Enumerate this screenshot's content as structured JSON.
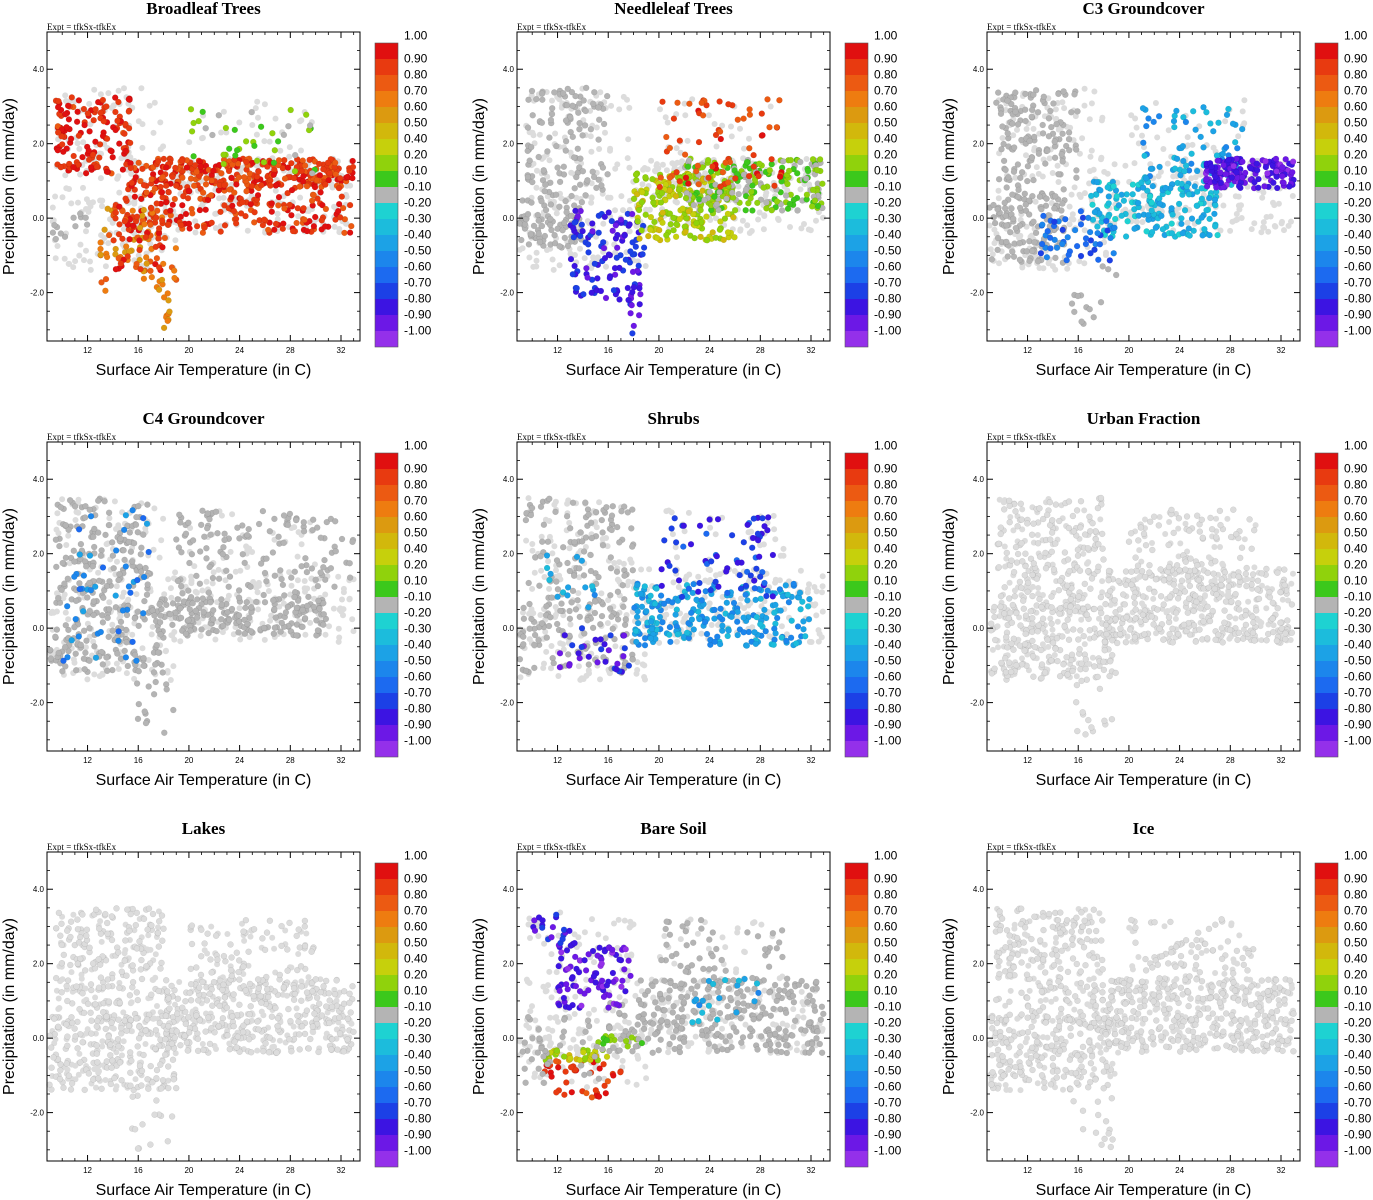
{
  "chart_data": [
    {
      "type": "scatter",
      "title": "Broadleaf Trees",
      "expt": "Expt = tfkSx-tfkEx",
      "xlabel": "Surface Air Temperature (in C)",
      "ylabel": "Precipitation (in mm/day)",
      "xlim": [
        8.8,
        33.5
      ],
      "ylim": [
        -3.3,
        5.0
      ],
      "xticks": [
        12,
        16,
        20,
        24,
        28,
        32
      ],
      "yticks": [
        -2.0,
        0.0,
        2.0,
        4.0
      ],
      "xtick_labels": [
        "12",
        "16",
        "20",
        "24",
        "28",
        "32"
      ],
      "ytick_labels": [
        "-2.0",
        "0.0",
        "2.0",
        "4.0"
      ],
      "clusters": [
        {
          "x": [
            9.5,
            15.5
          ],
          "y": [
            1.2,
            3.3
          ],
          "n": 140,
          "color_value": 0.95
        },
        {
          "x": [
            15,
            33
          ],
          "y": [
            -0.4,
            1.6
          ],
          "n": 320,
          "color_value": 0.9
        },
        {
          "x": [
            17,
            32
          ],
          "y": [
            0.8,
            1.6
          ],
          "n": 160,
          "color_value": 0.85
        },
        {
          "x": [
            20,
            30
          ],
          "y": [
            1.2,
            3.0
          ],
          "n": 40,
          "color_value": 0.15
        },
        {
          "x": [
            13,
            19
          ],
          "y": [
            -2.0,
            0.3
          ],
          "n": 70,
          "color_value": 0.65
        },
        {
          "x": [
            14,
            18
          ],
          "y": [
            -1.4,
            0.4
          ],
          "n": 50,
          "color_value": 0.92
        },
        {
          "x": [
            9,
            12
          ],
          "y": [
            -0.7,
            0.2
          ],
          "n": 12,
          "color_value": -0.05
        },
        {
          "x": [
            17.5,
            18.5
          ],
          "y": [
            -3.0,
            -1.5
          ],
          "n": 12,
          "color_value": 0.6
        }
      ]
    },
    {
      "type": "scatter",
      "title": "Needleleaf Trees",
      "expt": "Expt = tfkSx-tfkEx",
      "xlabel": "Surface Air Temperature (in C)",
      "ylabel": "Precipitation (in mm/day)",
      "xlim": [
        8.8,
        33.5
      ],
      "ylim": [
        -3.3,
        5.0
      ],
      "xticks": [
        12,
        16,
        20,
        24,
        28,
        32
      ],
      "yticks": [
        -2.0,
        0.0,
        2.0,
        4.0
      ],
      "xtick_labels": [
        "12",
        "16",
        "20",
        "24",
        "28",
        "32"
      ],
      "ytick_labels": [
        "-2.0",
        "0.0",
        "2.0",
        "4.0"
      ],
      "clusters": [
        {
          "x": [
            9.5,
            16
          ],
          "y": [
            0.6,
            3.5
          ],
          "n": 110,
          "color_value": -0.05
        },
        {
          "x": [
            9,
            14
          ],
          "y": [
            -0.8,
            0.6
          ],
          "n": 80,
          "color_value": -0.02
        },
        {
          "x": [
            13,
            19
          ],
          "y": [
            -2.2,
            0.2
          ],
          "n": 110,
          "color_value": -0.75
        },
        {
          "x": [
            17.5,
            18.5
          ],
          "y": [
            -3.1,
            -1.4
          ],
          "n": 14,
          "color_value": -0.8
        },
        {
          "x": [
            18,
            26
          ],
          "y": [
            -0.6,
            1.2
          ],
          "n": 200,
          "color_value": 0.3
        },
        {
          "x": [
            22,
            33
          ],
          "y": [
            0.2,
            1.6
          ],
          "n": 220,
          "color_value": 0.15
        },
        {
          "x": [
            20,
            30
          ],
          "y": [
            0.8,
            3.2
          ],
          "n": 70,
          "color_value": 0.85
        }
      ]
    },
    {
      "type": "scatter",
      "title": "C3 Groundcover",
      "expt": "Expt = tfkSx-tfkEx",
      "xlabel": "Surface Air Temperature (in C)",
      "ylabel": "Precipitation (in mm/day)",
      "xlim": [
        8.8,
        33.5
      ],
      "ylim": [
        -3.3,
        5.0
      ],
      "xticks": [
        12,
        16,
        20,
        24,
        28,
        32
      ],
      "yticks": [
        -2.0,
        0.0,
        2.0,
        4.0
      ],
      "xtick_labels": [
        "12",
        "16",
        "20",
        "24",
        "28",
        "32"
      ],
      "ytick_labels": [
        "-2.0",
        "0.0",
        "2.0",
        "4.0"
      ],
      "clusters": [
        {
          "x": [
            9.5,
            16
          ],
          "y": [
            0.6,
            3.5
          ],
          "n": 130,
          "color_value": -0.05
        },
        {
          "x": [
            9,
            15
          ],
          "y": [
            -1.2,
            0.6
          ],
          "n": 110,
          "color_value": -0.05
        },
        {
          "x": [
            15.5,
            19
          ],
          "y": [
            -3.0,
            -1.2
          ],
          "n": 14,
          "color_value": -0.02
        },
        {
          "x": [
            17,
            27
          ],
          "y": [
            -0.5,
            1.0
          ],
          "n": 160,
          "color_value": -0.25
        },
        {
          "x": [
            21,
            29
          ],
          "y": [
            0.8,
            3.0
          ],
          "n": 80,
          "color_value": -0.3
        },
        {
          "x": [
            26,
            33
          ],
          "y": [
            0.8,
            1.6
          ],
          "n": 150,
          "color_value": -0.85
        },
        {
          "x": [
            13,
            19
          ],
          "y": [
            -1.2,
            0.2
          ],
          "n": 50,
          "color_value": -0.55
        }
      ]
    },
    {
      "type": "scatter",
      "title": "C4 Groundcover",
      "expt": "Expt = tfkSx-tfkEx",
      "xlabel": "Surface Air Temperature (in C)",
      "ylabel": "Precipitation (in mm/day)",
      "xlim": [
        8.8,
        33.5
      ],
      "ylim": [
        -3.3,
        5.0
      ],
      "xticks": [
        12,
        16,
        20,
        24,
        28,
        32
      ],
      "yticks": [
        -2.0,
        0.0,
        2.0,
        4.0
      ],
      "xtick_labels": [
        "12",
        "16",
        "20",
        "24",
        "28",
        "32"
      ],
      "ytick_labels": [
        "-2.0",
        "0.0",
        "2.0",
        "4.0"
      ],
      "clusters": [
        {
          "x": [
            9.5,
            17
          ],
          "y": [
            0.6,
            3.5
          ],
          "n": 150,
          "color_value": -0.05
        },
        {
          "x": [
            9,
            18
          ],
          "y": [
            -1.2,
            0.6
          ],
          "n": 130,
          "color_value": -0.05
        },
        {
          "x": [
            17,
            31
          ],
          "y": [
            -0.2,
            0.8
          ],
          "n": 160,
          "color_value": -0.05
        },
        {
          "x": [
            19,
            33
          ],
          "y": [
            0.4,
            3.2
          ],
          "n": 160,
          "color_value": 0.0
        },
        {
          "x": [
            10,
            17
          ],
          "y": [
            -1.0,
            3.2
          ],
          "n": 45,
          "color_value": -0.45
        },
        {
          "x": [
            15.5,
            19
          ],
          "y": [
            -3.0,
            -1.4
          ],
          "n": 14,
          "color_value": 0.0
        }
      ]
    },
    {
      "type": "scatter",
      "title": "Shrubs",
      "expt": "Expt = tfkSx-tfkEx",
      "xlabel": "Surface Air Temperature (in C)",
      "ylabel": "Precipitation (in mm/day)",
      "xlim": [
        8.8,
        33.5
      ],
      "ylim": [
        -3.3,
        5.0
      ],
      "xticks": [
        12,
        16,
        20,
        24,
        28,
        32
      ],
      "yticks": [
        -2.0,
        0.0,
        2.0,
        4.0
      ],
      "xtick_labels": [
        "12",
        "16",
        "20",
        "24",
        "28",
        "32"
      ],
      "ytick_labels": [
        "-2.0",
        "0.0",
        "2.0",
        "4.0"
      ],
      "clusters": [
        {
          "x": [
            9.5,
            18
          ],
          "y": [
            0.6,
            3.5
          ],
          "n": 110,
          "color_value": 0.0
        },
        {
          "x": [
            9,
            18
          ],
          "y": [
            -1.2,
            0.6
          ],
          "n": 90,
          "color_value": -0.05
        },
        {
          "x": [
            18,
            32
          ],
          "y": [
            -0.5,
            1.2
          ],
          "n": 230,
          "color_value": -0.35
        },
        {
          "x": [
            20,
            29
          ],
          "y": [
            0.8,
            3.0
          ],
          "n": 70,
          "color_value": -0.7
        },
        {
          "x": [
            12,
            18
          ],
          "y": [
            -1.2,
            0.0
          ],
          "n": 30,
          "color_value": -0.75
        },
        {
          "x": [
            11,
            15
          ],
          "y": [
            0.4,
            2.0
          ],
          "n": 15,
          "color_value": -0.3
        }
      ]
    },
    {
      "type": "scatter",
      "title": "Urban Fraction",
      "expt": "Expt = tfkSx-tfkEx",
      "xlabel": "Surface Air Temperature (in C)",
      "ylabel": "Precipitation (in mm/day)",
      "xlim": [
        8.8,
        33.5
      ],
      "ylim": [
        -3.3,
        5.0
      ],
      "xticks": [
        12,
        16,
        20,
        24,
        28,
        32
      ],
      "yticks": [
        -2.0,
        0.0,
        2.0,
        4.0
      ],
      "xtick_labels": [
        "12",
        "16",
        "20",
        "24",
        "28",
        "32"
      ],
      "ytick_labels": [
        "-2.0",
        "0.0",
        "2.0",
        "4.0"
      ],
      "clusters": [
        {
          "x": [
            9.5,
            18
          ],
          "y": [
            0.4,
            3.5
          ],
          "n": 170,
          "color_value": 0.0
        },
        {
          "x": [
            9,
            19
          ],
          "y": [
            -1.4,
            0.6
          ],
          "n": 160,
          "color_value": 0.0
        },
        {
          "x": [
            18,
            33
          ],
          "y": [
            -0.4,
            1.6
          ],
          "n": 280,
          "color_value": 0.0
        },
        {
          "x": [
            20,
            30
          ],
          "y": [
            1.0,
            3.2
          ],
          "n": 80,
          "color_value": 0.0
        },
        {
          "x": [
            15.5,
            19
          ],
          "y": [
            -3.0,
            -1.4
          ],
          "n": 14,
          "color_value": 0.0
        }
      ]
    },
    {
      "type": "scatter",
      "title": "Lakes",
      "expt": "Expt = tfkSx-tfkEx",
      "xlabel": "Surface Air Temperature (in C)",
      "ylabel": "Precipitation (in mm/day)",
      "xlim": [
        8.8,
        33.5
      ],
      "ylim": [
        -3.3,
        5.0
      ],
      "xticks": [
        12,
        16,
        20,
        24,
        28,
        32
      ],
      "yticks": [
        -2.0,
        0.0,
        2.0,
        4.0
      ],
      "xtick_labels": [
        "12",
        "16",
        "20",
        "24",
        "28",
        "32"
      ],
      "ytick_labels": [
        "-2.0",
        "0.0",
        "2.0",
        "4.0"
      ],
      "clusters": [
        {
          "x": [
            9.5,
            18
          ],
          "y": [
            0.4,
            3.5
          ],
          "n": 170,
          "color_value": 0.0
        },
        {
          "x": [
            9,
            19
          ],
          "y": [
            -1.4,
            0.6
          ],
          "n": 160,
          "color_value": 0.0
        },
        {
          "x": [
            18,
            33
          ],
          "y": [
            -0.4,
            1.6
          ],
          "n": 280,
          "color_value": 0.0
        },
        {
          "x": [
            20,
            30
          ],
          "y": [
            1.0,
            3.2
          ],
          "n": 80,
          "color_value": 0.0
        },
        {
          "x": [
            15.5,
            19
          ],
          "y": [
            -3.0,
            -1.4
          ],
          "n": 14,
          "color_value": 0.0
        }
      ]
    },
    {
      "type": "scatter",
      "title": "Bare Soil",
      "expt": "Expt = tfkSx-tfkEx",
      "xlabel": "Surface Air Temperature (in C)",
      "ylabel": "Precipitation (in mm/day)",
      "xlim": [
        8.8,
        33.5
      ],
      "ylim": [
        -3.3,
        5.0
      ],
      "xticks": [
        12,
        16,
        20,
        24,
        28,
        32
      ],
      "yticks": [
        -2.0,
        0.0,
        2.0,
        4.0
      ],
      "xtick_labels": [
        "12",
        "16",
        "20",
        "24",
        "28",
        "32"
      ],
      "ytick_labels": [
        "-2.0",
        "0.0",
        "2.0",
        "4.0"
      ],
      "clusters": [
        {
          "x": [
            16,
            33
          ],
          "y": [
            -0.4,
            1.6
          ],
          "n": 260,
          "color_value": -0.05
        },
        {
          "x": [
            20,
            30
          ],
          "y": [
            0.8,
            3.2
          ],
          "n": 60,
          "color_value": -0.05
        },
        {
          "x": [
            12,
            18
          ],
          "y": [
            0.8,
            2.6
          ],
          "n": 90,
          "color_value": -0.85
        },
        {
          "x": [
            10,
            13
          ],
          "y": [
            2.4,
            3.4
          ],
          "n": 18,
          "color_value": -0.75
        },
        {
          "x": [
            11,
            17
          ],
          "y": [
            -1.6,
            -0.6
          ],
          "n": 40,
          "color_value": 0.9
        },
        {
          "x": [
            11,
            16
          ],
          "y": [
            -0.6,
            -0.3
          ],
          "n": 35,
          "color_value": 0.3
        },
        {
          "x": [
            15,
            19
          ],
          "y": [
            -0.3,
            0.2
          ],
          "n": 15,
          "color_value": 0.15
        },
        {
          "x": [
            22,
            28
          ],
          "y": [
            0.2,
            1.6
          ],
          "n": 20,
          "color_value": -0.3
        },
        {
          "x": [
            9,
            16
          ],
          "y": [
            -1.2,
            0.6
          ],
          "n": 40,
          "color_value": 0.0
        }
      ]
    },
    {
      "type": "scatter",
      "title": "Ice",
      "expt": "Expt = tfkSx-tfkEx",
      "xlabel": "Surface Air Temperature (in C)",
      "ylabel": "Precipitation (in mm/day)",
      "xlim": [
        8.8,
        33.5
      ],
      "ylim": [
        -3.3,
        5.0
      ],
      "xticks": [
        12,
        16,
        20,
        24,
        28,
        32
      ],
      "yticks": [
        -2.0,
        0.0,
        2.0,
        4.0
      ],
      "xtick_labels": [
        "12",
        "16",
        "20",
        "24",
        "28",
        "32"
      ],
      "ytick_labels": [
        "-2.0",
        "0.0",
        "2.0",
        "4.0"
      ],
      "clusters": [
        {
          "x": [
            9.5,
            18
          ],
          "y": [
            0.4,
            3.5
          ],
          "n": 170,
          "color_value": 0.0
        },
        {
          "x": [
            9,
            19
          ],
          "y": [
            -1.4,
            0.6
          ],
          "n": 160,
          "color_value": 0.0
        },
        {
          "x": [
            18,
            33
          ],
          "y": [
            -0.4,
            1.6
          ],
          "n": 280,
          "color_value": 0.0
        },
        {
          "x": [
            20,
            30
          ],
          "y": [
            1.0,
            3.2
          ],
          "n": 80,
          "color_value": 0.0
        },
        {
          "x": [
            15.5,
            19
          ],
          "y": [
            -3.0,
            -1.4
          ],
          "n": 14,
          "color_value": 0.0
        }
      ]
    }
  ],
  "colorbar": {
    "labels": [
      "1.00",
      "0.90",
      "0.80",
      "0.70",
      "0.60",
      "0.50",
      "0.40",
      "0.20",
      "0.10",
      "-0.10",
      "-0.20",
      "-0.30",
      "-0.40",
      "-0.50",
      "-0.60",
      "-0.70",
      "-0.80",
      "-0.90",
      "-1.00"
    ],
    "colors": [
      "#e01010",
      "#e83a10",
      "#ec5a12",
      "#ee7c10",
      "#dc9a10",
      "#d2b80c",
      "#c6d00c",
      "#90d20c",
      "#3cc81c",
      "#b4b4b4",
      "#1ed2d2",
      "#1cbcdc",
      "#1ca2e6",
      "#1c86ec",
      "#1c6af0",
      "#1c40e6",
      "#3c14e2",
      "#6c18e6",
      "#9430ea"
    ]
  },
  "faint_color": "#dcdcdc",
  "neutral_color": "#b4b4b4"
}
